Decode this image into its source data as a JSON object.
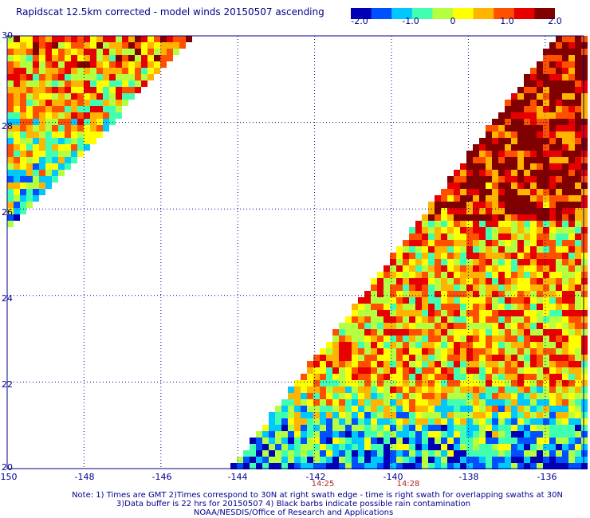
{
  "title": "Rapidscat 12.5km corrected - model winds 20150507 ascending",
  "colorbar": {
    "labels": [
      "-2.0",
      "-1.0",
      "0",
      "1.0",
      "2.0"
    ],
    "colors": [
      "#0000b4",
      "#0050ff",
      "#00c8ff",
      "#40ffb0",
      "#b4ff40",
      "#ffff00",
      "#ffb400",
      "#ff5000",
      "#e60000",
      "#800000"
    ]
  },
  "map": {
    "lon_range": [
      -150,
      -135
    ],
    "lat_range": [
      20,
      30
    ],
    "lon_ticks": [
      "-150",
      "-148",
      "-146",
      "-144",
      "-142",
      "-140",
      "-138",
      "-136"
    ],
    "lat_ticks": [
      "30",
      "28",
      "26",
      "24",
      "22",
      "20"
    ],
    "grid_color": "#00008b",
    "time_labels": [
      {
        "text": "14:25",
        "lon": -142
      },
      {
        "text": "14:28",
        "lon": -140
      }
    ]
  },
  "notes": [
    "Note: 1) Times are GMT 2)Times correspond to 30N at right swath edge - time is right swath for overlapping swaths at 30N",
    "3)Data buffer is 22 hrs for 20150507 4) Black barbs indicate possible rain contamination",
    "NOAA/NESDIS/Office of Research and Applications"
  ]
}
